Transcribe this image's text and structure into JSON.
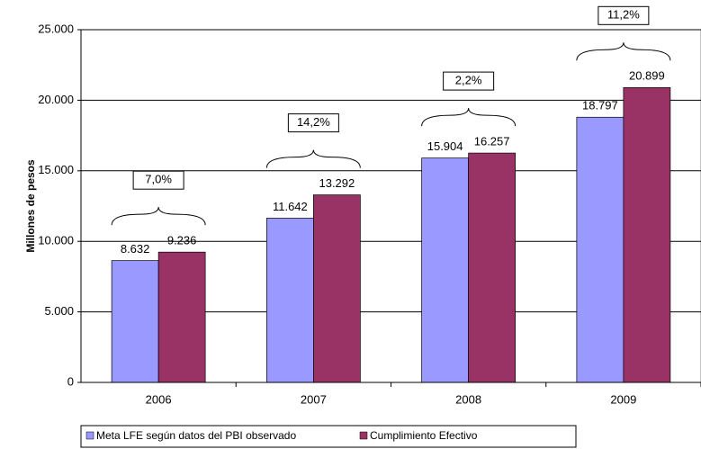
{
  "chart_data": {
    "type": "bar",
    "y_label": "Millones de pesos",
    "categories": [
      "2006",
      "2007",
      "2008",
      "2009"
    ],
    "series": [
      {
        "name": "Meta LFE según datos del PBI observado",
        "color": "#9999ff",
        "values": [
          8632,
          11642,
          15904,
          18797
        ],
        "value_labels": [
          "8.632",
          "11.642",
          "15.904",
          "18.797"
        ]
      },
      {
        "name": "Cumplimiento Efectivo",
        "color": "#993366",
        "values": [
          9236,
          13292,
          16257,
          20899
        ],
        "value_labels": [
          "9.236",
          "13.292",
          "16.257",
          "20.899"
        ]
      }
    ],
    "annotations": [
      "7,0%",
      "14,2%",
      "2,2%",
      "11,2%"
    ],
    "ylim": [
      0,
      25000
    ],
    "yticks": [
      0,
      {
        "value": 5000,
        "label": "5.000"
      },
      {
        "value": 10000,
        "label": "10.000"
      },
      {
        "value": 15000,
        "label": "15.000"
      },
      {
        "value": 20000,
        "label": "20.000"
      },
      {
        "value": 25000,
        "label": "25.000"
      }
    ],
    "grid": true
  }
}
